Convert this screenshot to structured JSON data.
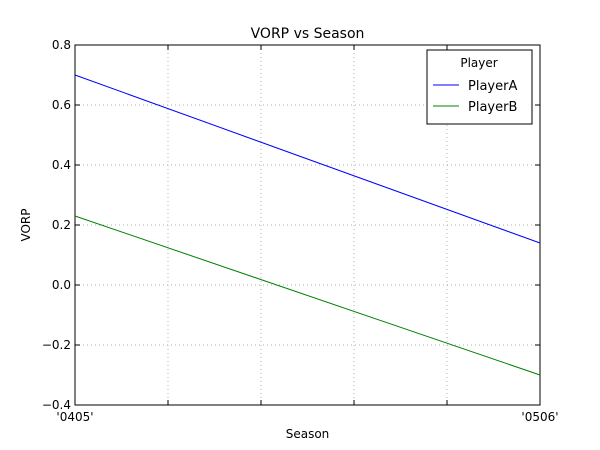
{
  "chart_data": {
    "type": "line",
    "title": "VORP vs Season",
    "xlabel": "Season",
    "ylabel": "VORP",
    "categories": [
      "'0405'",
      "'0506'"
    ],
    "x_tick_labels": [
      "'0405'",
      "'0506'"
    ],
    "ylim": [
      -0.4,
      0.8
    ],
    "y_ticks": [
      -0.4,
      -0.2,
      0.0,
      0.2,
      0.4,
      0.6,
      0.8
    ],
    "y_tick_labels": [
      "−0.4",
      "−0.2",
      "0.0",
      "0.2",
      "0.4",
      "0.6",
      "0.8"
    ],
    "grid": true,
    "legend": {
      "title": "Player",
      "placement": "top-right"
    },
    "series": [
      {
        "name": "PlayerA",
        "values": [
          0.7,
          0.14
        ],
        "color": "#0000ff"
      },
      {
        "name": "PlayerB",
        "values": [
          0.23,
          -0.3
        ],
        "color": "#008000"
      }
    ]
  }
}
